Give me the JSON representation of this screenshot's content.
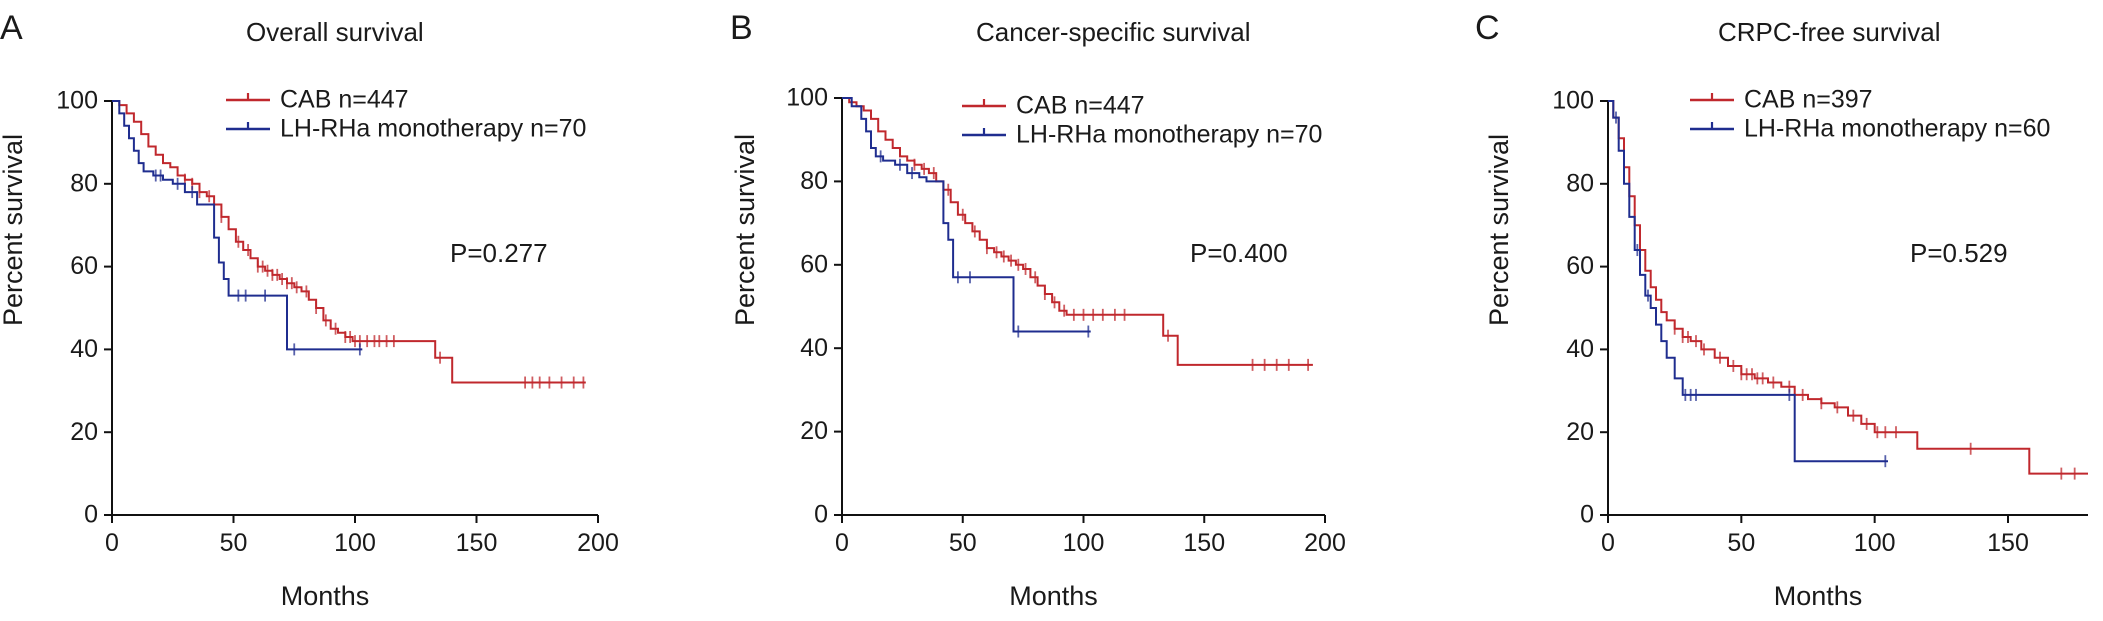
{
  "chart_data": [
    {
      "panel": "A",
      "type": "line",
      "title": "Overall survival",
      "xlabel": "Months",
      "ylabel": "Percent survival",
      "xlim": [
        0,
        200
      ],
      "ylim": [
        0,
        100
      ],
      "xticks": [
        "0",
        "50",
        "100",
        "150",
        "200"
      ],
      "yticks": [
        "0",
        "20",
        "40",
        "60",
        "80",
        "100"
      ],
      "pvalue": "P=0.277",
      "legend_position": "top-right",
      "series": [
        {
          "name": "CAB n=447",
          "color": "#c0282d",
          "x": [
            0,
            3,
            6,
            9,
            12,
            15,
            18,
            21,
            24,
            27,
            30,
            33,
            36,
            39,
            42,
            45,
            48,
            51,
            54,
            57,
            60,
            63,
            66,
            69,
            72,
            75,
            78,
            81,
            84,
            87,
            90,
            93,
            96,
            99,
            132,
            133,
            139,
            140,
            195
          ],
          "y": [
            100,
            99,
            97,
            95,
            92,
            89,
            87,
            85,
            84,
            82,
            81,
            80,
            78,
            77,
            75,
            72,
            69,
            66,
            64,
            62,
            60,
            59,
            58,
            57,
            56,
            55,
            54,
            52,
            50,
            47,
            45,
            44,
            43,
            42,
            42,
            38,
            38,
            32,
            32
          ],
          "censor": [
            30,
            33,
            36,
            40,
            45,
            52,
            56,
            60,
            62,
            64,
            66,
            68,
            70,
            72,
            74,
            76,
            80,
            84,
            88,
            92,
            96,
            98,
            100,
            102,
            105,
            108,
            110,
            113,
            116,
            135,
            170,
            173,
            176,
            180,
            185,
            190,
            194
          ]
        },
        {
          "name": "LH-RHa monotherapy n=70",
          "color": "#1f2d8f",
          "x": [
            0,
            3,
            5,
            7,
            9,
            11,
            13,
            17,
            21,
            25,
            30,
            35,
            40,
            42,
            44,
            46,
            48,
            70,
            72,
            103
          ],
          "y": [
            100,
            97,
            94,
            91,
            88,
            85,
            83,
            82,
            81,
            80,
            78,
            75,
            75,
            67,
            61,
            57,
            53,
            53,
            40,
            40
          ],
          "censor": [
            18,
            20,
            27,
            33,
            52,
            55,
            63,
            75,
            102
          ]
        }
      ]
    },
    {
      "panel": "B",
      "type": "line",
      "title": "Cancer-specific survival",
      "xlabel": "Months",
      "ylabel": "Percent survival",
      "xlim": [
        0,
        200
      ],
      "ylim": [
        0,
        100
      ],
      "xticks": [
        "0",
        "50",
        "100",
        "150",
        "200"
      ],
      "yticks": [
        "0",
        "20",
        "40",
        "60",
        "80",
        "100"
      ],
      "pvalue": "P=0.400",
      "legend_position": "top-right",
      "series": [
        {
          "name": "CAB n=447",
          "color": "#c0282d",
          "x": [
            0,
            3,
            6,
            9,
            12,
            15,
            18,
            21,
            24,
            27,
            30,
            33,
            36,
            39,
            42,
            45,
            48,
            51,
            54,
            57,
            60,
            63,
            66,
            69,
            72,
            75,
            78,
            81,
            84,
            87,
            90,
            93,
            96,
            99,
            132,
            133,
            138,
            139,
            195
          ],
          "y": [
            100,
            99,
            98,
            97,
            95,
            92,
            90,
            88,
            86,
            85,
            84,
            83,
            82,
            80,
            78,
            75,
            72,
            70,
            68,
            66,
            64,
            63,
            62,
            61,
            60,
            59,
            57,
            55,
            53,
            51,
            49,
            48,
            48,
            48,
            48,
            43,
            43,
            36,
            36
          ],
          "censor": [
            30,
            34,
            38,
            44,
            50,
            55,
            60,
            64,
            67,
            70,
            73,
            76,
            80,
            84,
            88,
            92,
            96,
            100,
            104,
            108,
            113,
            117,
            135,
            170,
            175,
            180,
            185,
            193
          ]
        },
        {
          "name": "LH-RHa monotherapy n=70",
          "color": "#1f2d8f",
          "x": [
            0,
            4,
            8,
            10,
            12,
            14,
            17,
            22,
            27,
            32,
            35,
            37,
            42,
            44,
            46,
            68,
            71,
            103
          ],
          "y": [
            100,
            98,
            95,
            92,
            88,
            86,
            85,
            84,
            82,
            81,
            80,
            80,
            70,
            66,
            57,
            57,
            44,
            44
          ],
          "censor": [
            16,
            24,
            29,
            48,
            53,
            73,
            102
          ]
        }
      ]
    },
    {
      "panel": "C",
      "type": "line",
      "title": "CRPC-free survival",
      "xlabel": "Months",
      "ylabel": "Percent survival",
      "xlim": [
        0,
        180
      ],
      "ylim": [
        0,
        100
      ],
      "xticks": [
        "0",
        "50",
        "100",
        "150"
      ],
      "yticks": [
        "0",
        "20",
        "40",
        "60",
        "80",
        "100"
      ],
      "pvalue": "P=0.529",
      "legend_position": "top-right",
      "series": [
        {
          "name": "CAB n=397",
          "color": "#c0282d",
          "x": [
            0,
            2,
            4,
            6,
            8,
            10,
            12,
            14,
            16,
            18,
            20,
            22,
            25,
            28,
            31,
            35,
            40,
            45,
            50,
            55,
            60,
            65,
            70,
            75,
            80,
            85,
            90,
            95,
            100,
            105,
            115,
            116,
            157,
            158,
            180
          ],
          "y": [
            100,
            96,
            91,
            84,
            77,
            70,
            64,
            59,
            55,
            52,
            49,
            47,
            45,
            43,
            42,
            40,
            38,
            36,
            34,
            33,
            32,
            31,
            29,
            28,
            27,
            26,
            24,
            22,
            20,
            20,
            20,
            16,
            16,
            10,
            10
          ],
          "censor": [
            25,
            28,
            30,
            33,
            36,
            42,
            47,
            50,
            52,
            54,
            56,
            58,
            62,
            68,
            73,
            80,
            86,
            92,
            97,
            101,
            104,
            108,
            136,
            170,
            175
          ]
        },
        {
          "name": "LH-RHa monotherapy n=60",
          "color": "#1f2d8f",
          "x": [
            0,
            2,
            4,
            6,
            8,
            10,
            12,
            14,
            16,
            18,
            20,
            22,
            25,
            28,
            30,
            69,
            70,
            105
          ],
          "y": [
            100,
            96,
            88,
            80,
            72,
            64,
            58,
            53,
            50,
            46,
            42,
            38,
            33,
            29,
            29,
            29,
            13,
            13
          ],
          "censor": [
            3,
            11,
            15,
            29,
            31,
            33,
            68,
            104
          ]
        }
      ]
    }
  ]
}
